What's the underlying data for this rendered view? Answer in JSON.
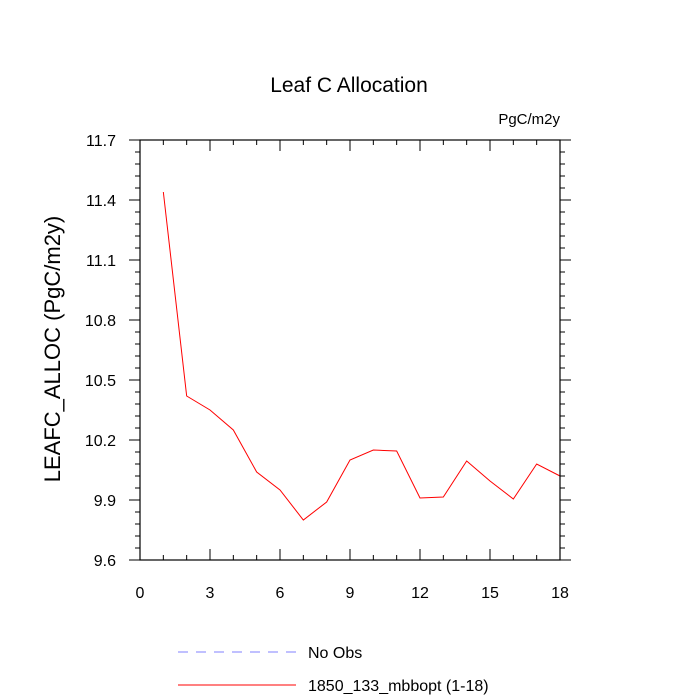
{
  "chart_data": {
    "type": "line",
    "title": "Leaf C Allocation",
    "units": "PgC/m2y",
    "xlabel": "",
    "ylabel": "LEAFC_ALLOC  (PgC/m2y)",
    "xlim": [
      0,
      18
    ],
    "ylim": [
      9.6,
      11.7
    ],
    "x_ticks": [
      0,
      3,
      6,
      9,
      12,
      15,
      18
    ],
    "y_ticks": [
      9.6,
      9.9,
      10.2,
      10.5,
      10.8,
      11.1,
      11.4,
      11.7
    ],
    "x_tick_labels": [
      "0",
      "3",
      "6",
      "9",
      "12",
      "15",
      "18"
    ],
    "y_tick_labels": [
      "9.6",
      "9.9",
      "10.2",
      "10.5",
      "10.8",
      "11.1",
      "11.4",
      "11.7"
    ],
    "series": [
      {
        "name": "1850_133_mbbopt (1-18)",
        "color": "#ff0000",
        "dash": "solid",
        "x": [
          1,
          2,
          3,
          4,
          5,
          6,
          7,
          8,
          9,
          10,
          11,
          12,
          13,
          14,
          15,
          16,
          17,
          18
        ],
        "values": [
          11.44,
          10.42,
          10.35,
          10.25,
          10.04,
          9.95,
          9.8,
          9.89,
          10.1,
          10.15,
          10.145,
          9.91,
          9.915,
          10.095,
          9.995,
          9.905,
          10.08,
          10.02
        ]
      }
    ],
    "legend": [
      {
        "label": "No Obs",
        "color": "#8080ff",
        "dash": "dashed"
      },
      {
        "label": "1850_133_mbbopt (1-18)",
        "color": "#ff0000",
        "dash": "solid"
      }
    ],
    "legend_position": "bottom"
  }
}
